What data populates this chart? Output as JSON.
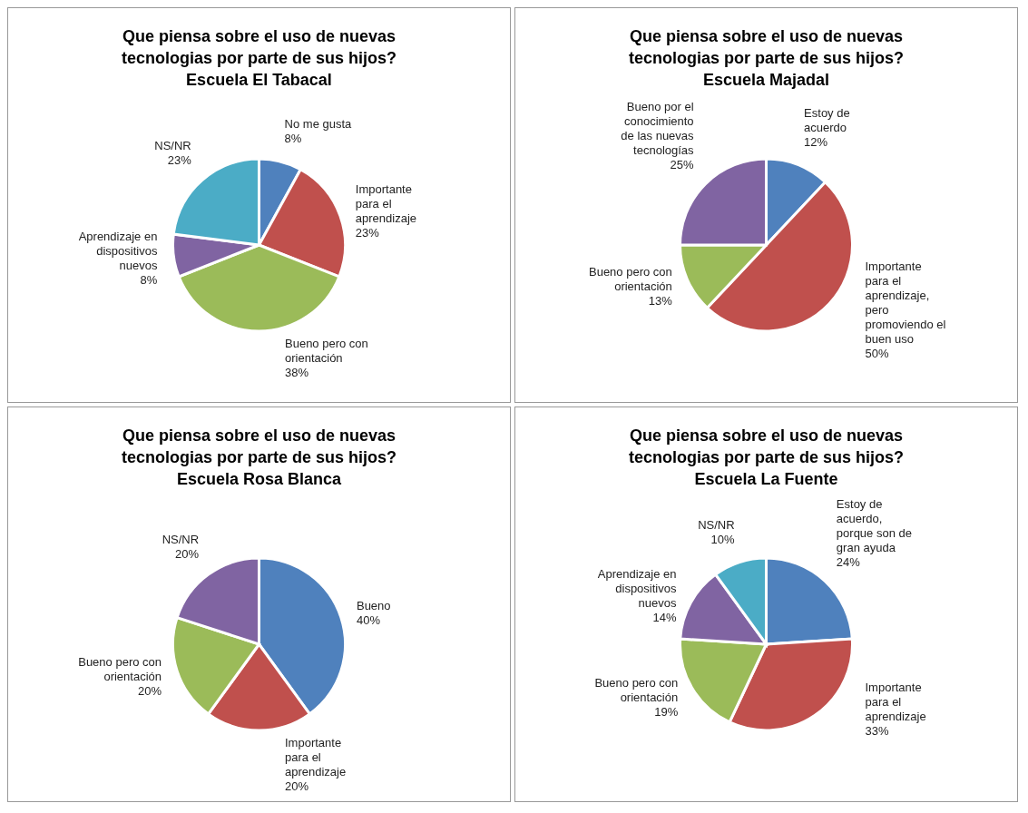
{
  "chart_data": [
    {
      "type": "pie",
      "title": "Que piensa sobre el uso de nuevas tecnologias por parte de sus hijos?",
      "subtitle": "Escuela El Tabacal",
      "categories": [
        "No me gusta",
        "Importante para el aprendizaje",
        "Bueno pero con orientación",
        "Aprendizaje en dispositivos nuevos",
        "NS/NR"
      ],
      "values": [
        8,
        23,
        38,
        8,
        23
      ],
      "value_labels": [
        "8%",
        "23%",
        "38%",
        "8%",
        "23%"
      ],
      "colors": [
        "#4f81bd",
        "#c0504d",
        "#9bbb59",
        "#8064a2",
        "#4bacc6"
      ]
    },
    {
      "type": "pie",
      "title": "Que piensa sobre el uso de nuevas tecnologias por parte de sus hijos?",
      "subtitle": "Escuela Majadal",
      "categories": [
        "Estoy de acuerdo",
        "Importante para el aprendizaje, pero promoviendo el buen uso",
        "Bueno pero con orientación",
        "Bueno por el conocimiento de las nuevas tecnologías"
      ],
      "values": [
        12,
        50,
        13,
        25
      ],
      "value_labels": [
        "12%",
        "50%",
        "13%",
        "25%"
      ],
      "colors": [
        "#4f81bd",
        "#c0504d",
        "#9bbb59",
        "#8064a2"
      ]
    },
    {
      "type": "pie",
      "title": "Que piensa sobre el uso de nuevas tecnologias por parte de sus hijos?",
      "subtitle": "Escuela Rosa Blanca",
      "categories": [
        "Bueno",
        "Importante para el aprendizaje",
        "Bueno pero con orientación",
        "NS/NR"
      ],
      "values": [
        40,
        20,
        20,
        20
      ],
      "value_labels": [
        "40%",
        "20%",
        "20%",
        "20%"
      ],
      "colors": [
        "#4f81bd",
        "#c0504d",
        "#9bbb59",
        "#8064a2"
      ]
    },
    {
      "type": "pie",
      "title": "Que piensa sobre el uso de nuevas tecnologias por parte de sus hijos?",
      "subtitle": "Escuela La Fuente",
      "categories": [
        "Estoy de acuerdo, porque son de gran ayuda",
        "Importante para el aprendizaje",
        "Bueno pero con orientación",
        "Aprendizaje en dispositivos nuevos",
        "NS/NR"
      ],
      "values": [
        24,
        33,
        19,
        14,
        10
      ],
      "value_labels": [
        "24%",
        "33%",
        "19%",
        "14%",
        "10%"
      ],
      "colors": [
        "#4f81bd",
        "#c0504d",
        "#9bbb59",
        "#8064a2",
        "#4bacc6"
      ]
    }
  ]
}
